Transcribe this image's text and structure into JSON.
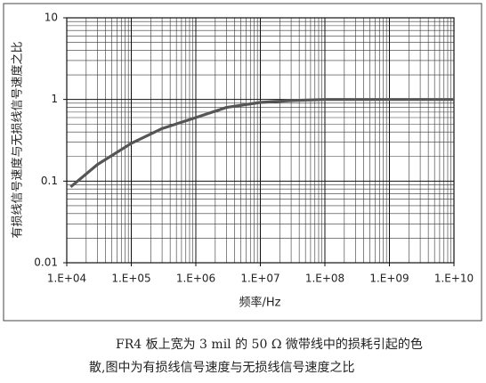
{
  "chart_data": {
    "type": "line",
    "xlabel": "频率/Hz",
    "ylabel": "有损线信号速度与无损线信号速度之比",
    "xscale": "log",
    "yscale": "log",
    "grid": true,
    "xlim": [
      10000,
      10000000000
    ],
    "ylim": [
      0.01,
      10
    ],
    "xticks": [
      {
        "value": 10000,
        "label": "1.E+04"
      },
      {
        "value": 100000,
        "label": "1.E+05"
      },
      {
        "value": 1000000,
        "label": "1.E+06"
      },
      {
        "value": 10000000,
        "label": "1.E+07"
      },
      {
        "value": 100000000,
        "label": "1.E+08"
      },
      {
        "value": 1000000000,
        "label": "1.E+09"
      },
      {
        "value": 10000000000,
        "label": "1.E+10"
      }
    ],
    "yticks": [
      0.01,
      0.1,
      1,
      10
    ],
    "series": [
      {
        "color": "#555555",
        "x": [
          11500,
          30000,
          100000,
          300000,
          1000000,
          3000000,
          10000000,
          30000000,
          100000000,
          1000000000,
          10000000000
        ],
        "values": [
          0.085,
          0.16,
          0.29,
          0.44,
          0.6,
          0.8,
          0.92,
          0.97,
          1.0,
          1.0,
          1.0
        ]
      }
    ],
    "caption": [
      "FR4 板上宽为 3 mil 的 50 Ω 微带线中的损耗引起的色",
      "散,图中为有损线信号速度与无损线信号速度之比"
    ]
  }
}
